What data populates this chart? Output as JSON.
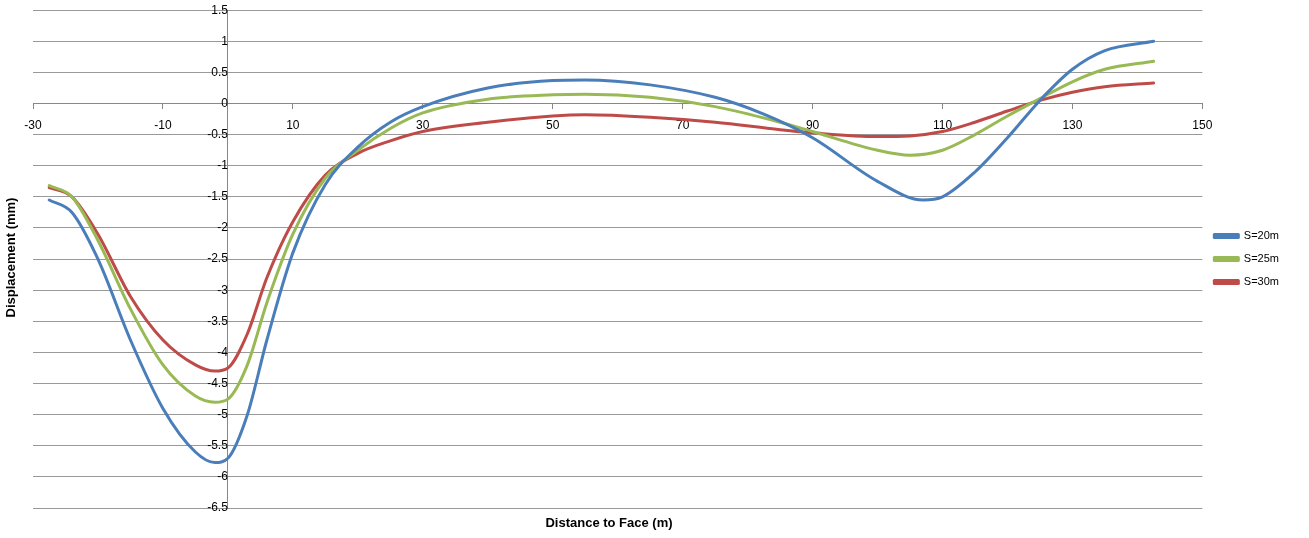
{
  "chart_data": {
    "type": "line",
    "xlabel": "Distance  to Face (m)",
    "ylabel": "Displacement  (mm)",
    "xlim": [
      -30,
      150
    ],
    "xticks": [
      -30,
      -10,
      10,
      30,
      50,
      70,
      90,
      110,
      130,
      150
    ],
    "ylim": [
      -6.5,
      1.5
    ],
    "yticks": [
      -6.5,
      -6,
      -5.5,
      -5,
      -4.5,
      -4,
      -3.5,
      -3,
      -2.5,
      -2,
      -1.5,
      -1,
      -0.5,
      0,
      0.5,
      1,
      1.5
    ],
    "grid": "y",
    "legend": "right",
    "marker": "none",
    "line_style": "solid",
    "x": [
      -27.5,
      -24,
      -20,
      -15,
      -10,
      -5,
      -2,
      0,
      3,
      6,
      10,
      15,
      20,
      25,
      30,
      40,
      50,
      55,
      65,
      75,
      85,
      90,
      100,
      105,
      110,
      115,
      120,
      125,
      130,
      135,
      142.5
    ],
    "series": [
      {
        "name": "S=20m",
        "color": "#4a7ebb",
        "x": [
          -27.5,
          -24,
          -20,
          -15,
          -10,
          -5,
          -2,
          0,
          3,
          6,
          10,
          15,
          20,
          25,
          30,
          40,
          50,
          55,
          65,
          75,
          82,
          90,
          100,
          107,
          110,
          115,
          120,
          125,
          130,
          135,
          142.5
        ],
        "values": [
          -1.55,
          -1.75,
          -2.5,
          -3.8,
          -4.9,
          -5.6,
          -5.77,
          -5.7,
          -5.0,
          -3.8,
          -2.4,
          -1.3,
          -0.7,
          -0.3,
          -0.05,
          0.25,
          0.37,
          0.38,
          0.3,
          0.1,
          -0.15,
          -0.55,
          -1.25,
          -1.55,
          -1.5,
          -1.1,
          -0.55,
          0.05,
          0.55,
          0.85,
          1.0
        ]
      },
      {
        "name": "S=25m",
        "color": "#98b954",
        "values": [
          -1.32,
          -1.5,
          -2.2,
          -3.3,
          -4.2,
          -4.7,
          -4.8,
          -4.75,
          -4.2,
          -3.2,
          -2.1,
          -1.2,
          -0.75,
          -0.4,
          -0.15,
          0.07,
          0.14,
          0.15,
          0.1,
          -0.05,
          -0.3,
          -0.45,
          -0.75,
          -0.83,
          -0.75,
          -0.5,
          -0.2,
          0.08,
          0.35,
          0.55,
          0.68
        ]
      },
      {
        "name": "S=30m",
        "color": "#be4b48",
        "values": [
          -1.35,
          -1.5,
          -2.1,
          -3.1,
          -3.8,
          -4.2,
          -4.3,
          -4.25,
          -3.7,
          -2.8,
          -1.9,
          -1.15,
          -0.8,
          -0.6,
          -0.45,
          -0.3,
          -0.2,
          -0.18,
          -0.22,
          -0.3,
          -0.42,
          -0.47,
          -0.53,
          -0.52,
          -0.45,
          -0.3,
          -0.12,
          0.05,
          0.18,
          0.27,
          0.33
        ]
      }
    ]
  }
}
